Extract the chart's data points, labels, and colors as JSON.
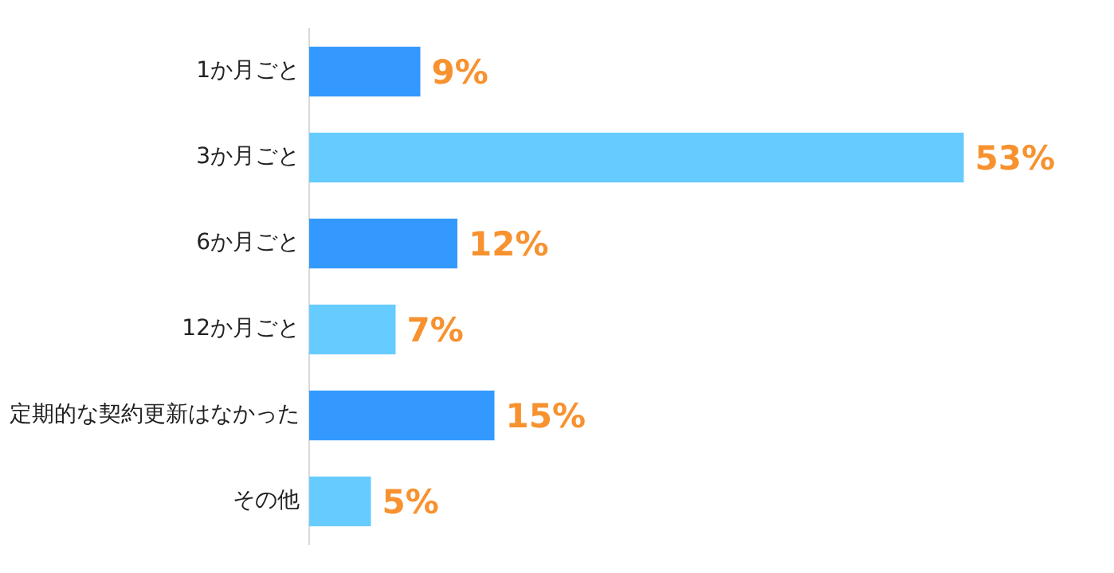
{
  "chart_data": {
    "type": "bar",
    "orientation": "horizontal",
    "categories": [
      "1か月ごと",
      "3か月ごと",
      "6か月ごと",
      "12か月ごと",
      "定期的な契約更新はなかった",
      "その他"
    ],
    "values": [
      9,
      53,
      12,
      7,
      15,
      5
    ],
    "colors": [
      "#3399ff",
      "#66ccff",
      "#3399ff",
      "#66ccff",
      "#3399ff",
      "#66ccff"
    ],
    "value_labels": [
      "9%",
      "53%",
      "12%",
      "7%",
      "15%",
      "5%"
    ],
    "tick_labels": "y",
    "legend": false
  }
}
